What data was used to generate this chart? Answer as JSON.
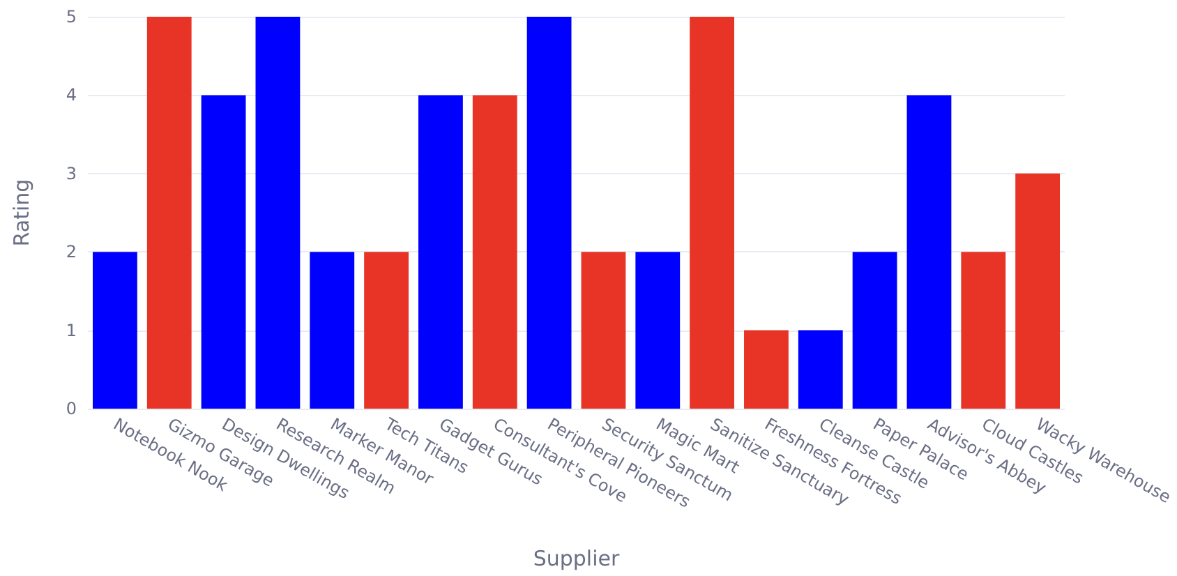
{
  "chart_data": {
    "type": "bar",
    "xlabel": "Supplier",
    "ylabel": "Rating",
    "categories": [
      "Notebook Nook",
      "Gizmo Garage",
      "Design Dwellings",
      "Research Realm",
      "Marker Manor",
      "Tech Titans",
      "Gadget Gurus",
      "Consultant's Cove",
      "Peripheral Pioneers",
      "Security Sanctum",
      "Magic Mart",
      "Sanitize Sanctuary",
      "Freshness Fortress",
      "Cleanse Castle",
      "Paper Palace",
      "Advisor's Abbey",
      "Cloud Castles",
      "Wacky Warehouse"
    ],
    "values": [
      2,
      5,
      4,
      5,
      2,
      2,
      4,
      4,
      5,
      2,
      2,
      5,
      1,
      1,
      2,
      4,
      2,
      3
    ],
    "colors": [
      "#0000ff",
      "#e83426",
      "#0000ff",
      "#0000ff",
      "#0000ff",
      "#e83426",
      "#0000ff",
      "#e83426",
      "#0000ff",
      "#e83426",
      "#0000ff",
      "#e83426",
      "#e83426",
      "#0000ff",
      "#0000ff",
      "#0000ff",
      "#e83426",
      "#e83426"
    ],
    "ylim": [
      0,
      5
    ],
    "yticks": [
      0,
      1,
      2,
      3,
      4,
      5
    ],
    "grid": "y"
  }
}
